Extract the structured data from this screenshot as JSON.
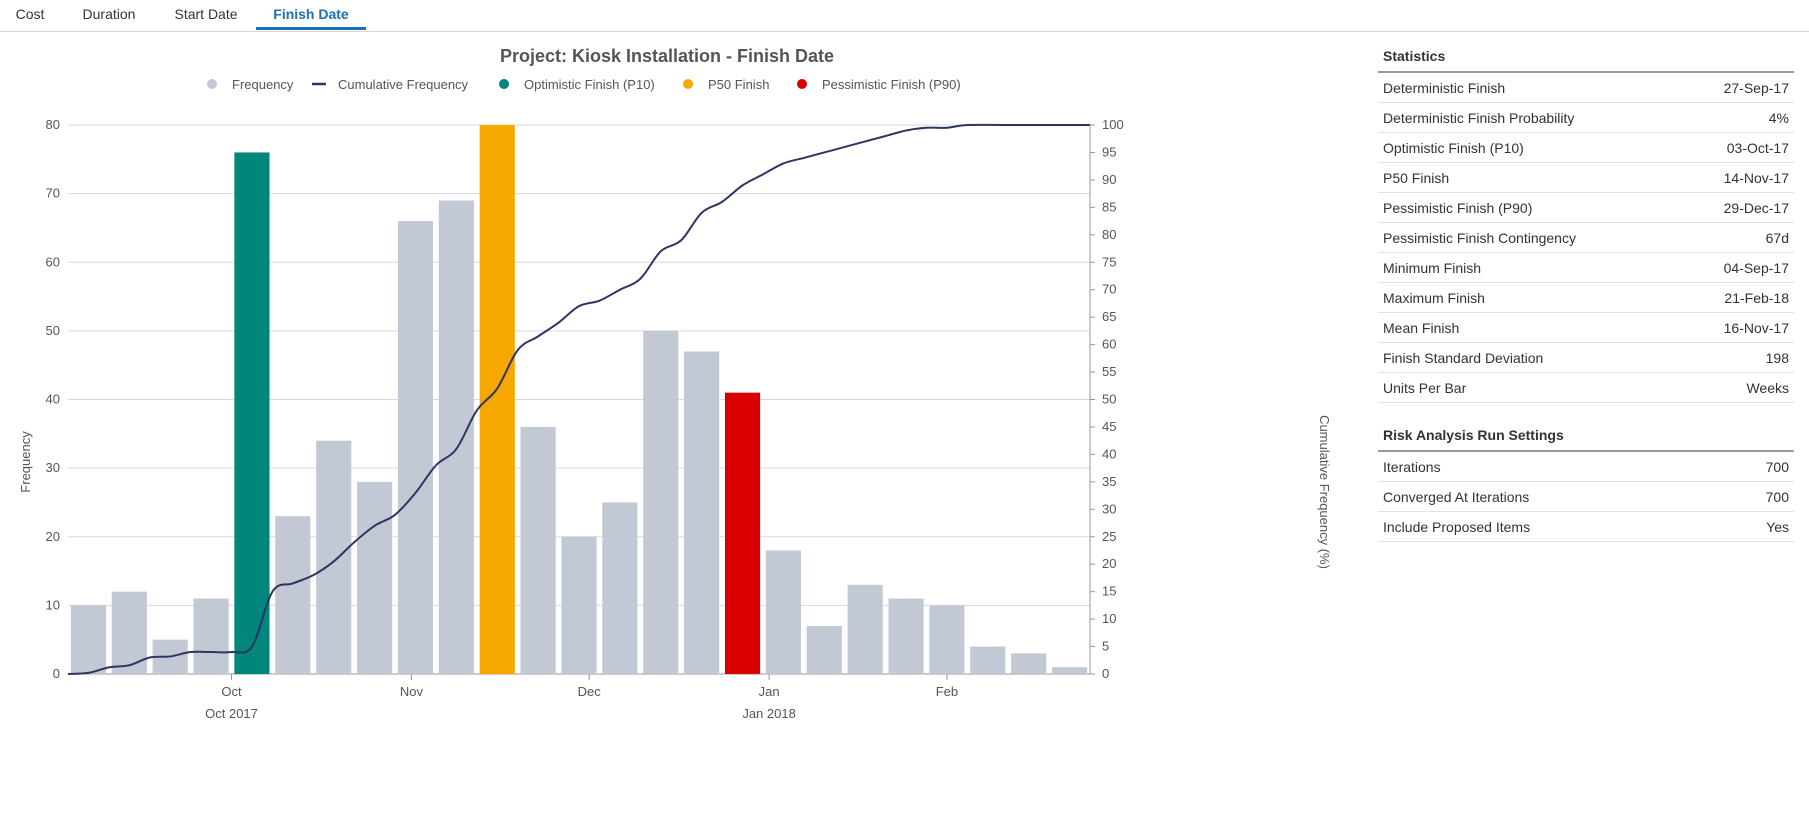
{
  "tabs": [
    {
      "label": "Cost",
      "active": false
    },
    {
      "label": "Duration",
      "active": false
    },
    {
      "label": "Start Date",
      "active": false
    },
    {
      "label": "Finish Date",
      "active": true
    }
  ],
  "chart_data": {
    "type": "bar",
    "title": "Project: Kiosk Installation - Finish Date",
    "xlabel": "",
    "ylabel": "Frequency",
    "y2label": "Cumulative Frequency (%)",
    "ylim": [
      0,
      80
    ],
    "y2lim": [
      0,
      100
    ],
    "yticks": [
      0,
      10,
      20,
      30,
      40,
      50,
      60,
      70,
      80
    ],
    "y2ticks": [
      0,
      5,
      10,
      15,
      20,
      25,
      30,
      35,
      40,
      45,
      50,
      55,
      60,
      65,
      70,
      75,
      80,
      85,
      90,
      95,
      100
    ],
    "grid": true,
    "legend_position": "top",
    "legend": [
      {
        "label": "Frequency",
        "symbol": "dot",
        "color": "#c3c9d4"
      },
      {
        "label": "Cumulative Frequency",
        "symbol": "line",
        "color": "#2d3561"
      },
      {
        "label": "Optimistic Finish (P10)",
        "symbol": "dot",
        "color": "#00867a"
      },
      {
        "label": "P50 Finish",
        "symbol": "dot",
        "color": "#f7a800"
      },
      {
        "label": "Pessimistic Finish (P90)",
        "symbol": "dot",
        "color": "#d80000"
      }
    ],
    "bars": [
      {
        "value": 10,
        "color": "#c3c9d4"
      },
      {
        "value": 12,
        "color": "#c3c9d4"
      },
      {
        "value": 5,
        "color": "#c3c9d4"
      },
      {
        "value": 11,
        "color": "#c3c9d4"
      },
      {
        "value": 76,
        "color": "#00867a"
      },
      {
        "value": 23,
        "color": "#c3c9d4"
      },
      {
        "value": 34,
        "color": "#c3c9d4"
      },
      {
        "value": 28,
        "color": "#c3c9d4"
      },
      {
        "value": 66,
        "color": "#c3c9d4"
      },
      {
        "value": 69,
        "color": "#c3c9d4"
      },
      {
        "value": 80,
        "color": "#f7a800"
      },
      {
        "value": 36,
        "color": "#c3c9d4"
      },
      {
        "value": 20,
        "color": "#c3c9d4"
      },
      {
        "value": 25,
        "color": "#c3c9d4"
      },
      {
        "value": 50,
        "color": "#c3c9d4"
      },
      {
        "value": 47,
        "color": "#c3c9d4"
      },
      {
        "value": 41,
        "color": "#d80000"
      },
      {
        "value": 18,
        "color": "#c3c9d4"
      },
      {
        "value": 7,
        "color": "#c3c9d4"
      },
      {
        "value": 13,
        "color": "#c3c9d4"
      },
      {
        "value": 11,
        "color": "#c3c9d4"
      },
      {
        "value": 10,
        "color": "#c3c9d4"
      },
      {
        "value": 4,
        "color": "#c3c9d4"
      },
      {
        "value": 3,
        "color": "#c3c9d4"
      },
      {
        "value": 1,
        "color": "#c3c9d4"
      }
    ],
    "cumulative": [
      [
        0,
        0
      ],
      [
        0.5,
        0.2
      ],
      [
        1,
        1.2
      ],
      [
        1.5,
        1.6
      ],
      [
        2,
        3
      ],
      [
        2.5,
        3.2
      ],
      [
        3,
        4
      ],
      [
        3.5,
        4
      ],
      [
        4,
        4
      ],
      [
        4.5,
        5
      ],
      [
        5,
        15
      ],
      [
        5.5,
        16.5
      ],
      [
        6,
        18
      ],
      [
        6.5,
        20.5
      ],
      [
        7,
        24
      ],
      [
        7.5,
        27
      ],
      [
        8,
        29
      ],
      [
        8.5,
        33
      ],
      [
        9,
        38
      ],
      [
        9.5,
        41
      ],
      [
        10,
        48
      ],
      [
        10.5,
        52
      ],
      [
        11,
        59
      ],
      [
        11.5,
        61.5
      ],
      [
        12,
        64
      ],
      [
        12.5,
        67
      ],
      [
        13,
        68
      ],
      [
        13.5,
        70
      ],
      [
        14,
        72
      ],
      [
        14.5,
        77
      ],
      [
        15,
        79
      ],
      [
        15.5,
        84
      ],
      [
        16,
        86
      ],
      [
        16.5,
        89
      ],
      [
        17,
        91
      ],
      [
        17.5,
        93
      ],
      [
        18,
        94
      ],
      [
        18.5,
        95
      ],
      [
        19,
        96
      ],
      [
        19.5,
        97
      ],
      [
        20,
        98
      ],
      [
        20.5,
        99
      ],
      [
        21,
        99.5
      ],
      [
        21.5,
        99.5
      ],
      [
        22,
        100
      ],
      [
        23,
        100
      ],
      [
        25,
        100
      ]
    ],
    "x_ticks": [
      {
        "label": "Oct",
        "pos": 4
      },
      {
        "label": "Nov",
        "pos": 8.4
      },
      {
        "label": "Dec",
        "pos": 12.75
      },
      {
        "label": "Jan",
        "pos": 17.15
      },
      {
        "label": "Feb",
        "pos": 21.5
      }
    ],
    "x_group_labels": [
      {
        "label": "Oct 2017",
        "pos": 4
      },
      {
        "label": "Jan 2018",
        "pos": 17.15
      }
    ]
  },
  "statistics": {
    "title": "Statistics",
    "rows": [
      {
        "label": "Deterministic Finish",
        "value": "27-Sep-17"
      },
      {
        "label": "Deterministic Finish Probability",
        "value": "4%"
      },
      {
        "label": "Optimistic Finish (P10)",
        "value": "03-Oct-17"
      },
      {
        "label": "P50 Finish",
        "value": "14-Nov-17"
      },
      {
        "label": "Pessimistic Finish (P90)",
        "value": "29-Dec-17"
      },
      {
        "label": "Pessimistic Finish Contingency",
        "value": "67d"
      },
      {
        "label": "Minimum Finish",
        "value": "04-Sep-17"
      },
      {
        "label": "Maximum Finish",
        "value": "21-Feb-18"
      },
      {
        "label": "Mean Finish",
        "value": "16-Nov-17"
      },
      {
        "label": "Finish Standard Deviation",
        "value": "198"
      },
      {
        "label": "Units Per Bar",
        "value": "Weeks"
      }
    ]
  },
  "risk_settings": {
    "title": "Risk Analysis Run Settings",
    "rows": [
      {
        "label": "Iterations",
        "value": "700"
      },
      {
        "label": "Converged At Iterations",
        "value": "700"
      },
      {
        "label": "Include Proposed Items",
        "value": "Yes"
      }
    ]
  }
}
